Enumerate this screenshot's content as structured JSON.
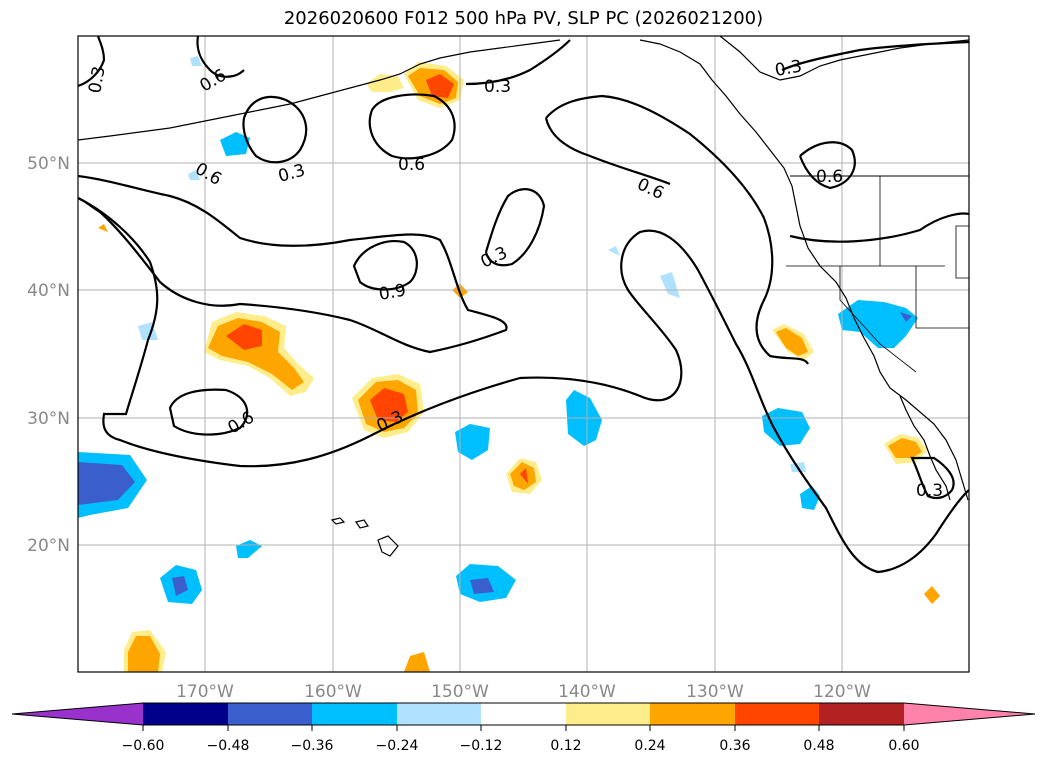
{
  "title": "2026020600 F012 500 hPa PV, SLP PC (2026021200)",
  "map": {
    "lon_range": [
      -180,
      -110
    ],
    "lat_range": [
      10,
      60
    ],
    "lat_ticks": [
      "20°N",
      "30°N",
      "40°N",
      "50°N"
    ],
    "lon_ticks": [
      "170°W",
      "160°W",
      "150°W",
      "140°W",
      "130°W",
      "120°W"
    ],
    "contour_labels": [
      "0.3",
      "0.6",
      "0.3",
      "0.6",
      "0.3",
      "0.6",
      "0.3",
      "0.6",
      "0.6",
      "0.3",
      "0.9",
      "0.3",
      "0.6",
      "0.3",
      "0.3"
    ]
  },
  "colorbar": {
    "levels": [
      "−0.60",
      "−0.48",
      "−0.36",
      "−0.24",
      "−0.12",
      "0.12",
      "0.24",
      "0.36",
      "0.48",
      "0.60"
    ],
    "colors": [
      "#9932cc",
      "#00008b",
      "#3a5fcd",
      "#00bfff",
      "#b0e2ff",
      "#ffffff",
      "#ffec8b",
      "#ffa500",
      "#ff4500",
      "#b22222",
      "#ff82ab"
    ]
  }
}
